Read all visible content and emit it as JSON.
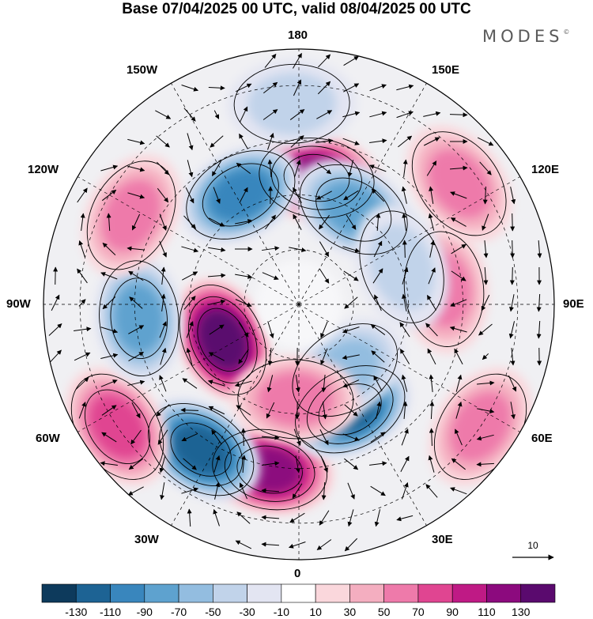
{
  "title": "Base 07/04/2025 00 UTC, valid 08/04/2025 00 UTC",
  "logo": "MODES",
  "logo_mark": "©",
  "longitude_labels": {
    "north": "180",
    "south": "0",
    "west": "90W",
    "east": "90E",
    "nw1": "150W",
    "nw2": "120W",
    "ne1": "150E",
    "ne2": "120E",
    "sw1": "60W",
    "sw2": "30W",
    "se1": "60E",
    "se2": "30E"
  },
  "vector_reference": "10",
  "colorbar": {
    "colors": [
      "#0d3a5c",
      "#1d6394",
      "#3986bd",
      "#5ea2cf",
      "#93bde0",
      "#c1d3ea",
      "#e3e5f2",
      "#ffffff",
      "#fad7dc",
      "#f4aec0",
      "#ee7aaa",
      "#e04591",
      "#bf1a85",
      "#8c0a7e",
      "#5a0a6e"
    ],
    "tick_labels": [
      "-130",
      "-110",
      "-90",
      "-70",
      "-50",
      "-30",
      "-10",
      "10",
      "30",
      "50",
      "70",
      "90",
      "110",
      "130"
    ]
  },
  "anomalies": [
    {
      "lon": -65,
      "lat": 67,
      "value": 130
    },
    {
      "lon": 172,
      "lat": 55,
      "value": 110
    },
    {
      "lon": -152,
      "lat": 56,
      "value": -90
    },
    {
      "lon": -10,
      "lat": 44,
      "value": 100
    },
    {
      "lon": -34,
      "lat": 42,
      "value": -100
    },
    {
      "lon": 26,
      "lat": 58,
      "value": -100
    },
    {
      "lon": -56,
      "lat": 30,
      "value": 70
    },
    {
      "lon": -85,
      "lat": 46,
      "value": -60
    },
    {
      "lon": 96,
      "lat": 50,
      "value": 50
    },
    {
      "lon": 150,
      "lat": 60,
      "value": -70
    },
    {
      "lon": 127,
      "lat": 35,
      "value": 50
    },
    {
      "lon": 56,
      "lat": 30,
      "value": 50
    },
    {
      "lon": 35,
      "lat": 68,
      "value": -40
    },
    {
      "lon": -118,
      "lat": 38,
      "value": 50
    },
    {
      "lon": -2,
      "lat": 64,
      "value": 40
    },
    {
      "lon": 110,
      "lat": 60,
      "value": -20
    },
    {
      "lon": -178,
      "lat": 35,
      "value": -20
    }
  ]
}
